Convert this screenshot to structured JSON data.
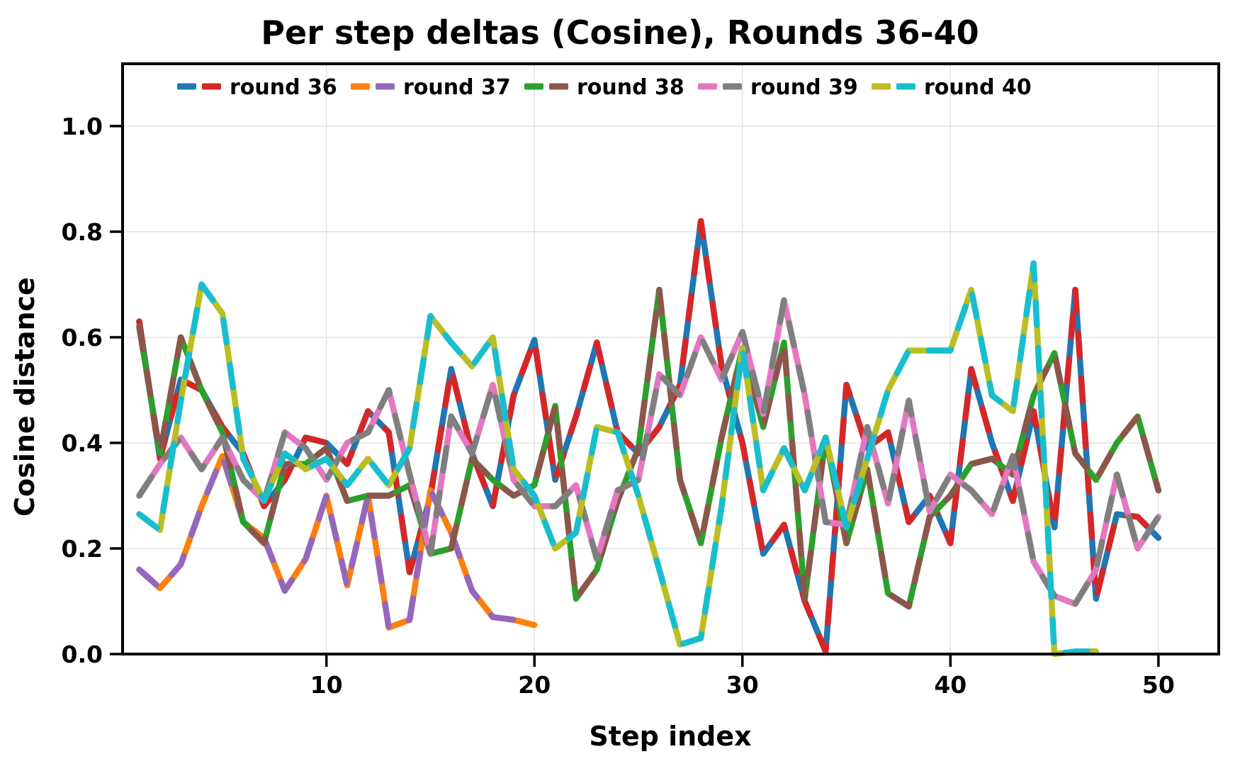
{
  "title": "Per step deltas (Cosine), Rounds 36-40",
  "x_axis_label": "Step index",
  "y_axis_label": "Cosine distance",
  "legend": {
    "items": [
      "round 36",
      "round 37",
      "round 38",
      "round 39",
      "round 40"
    ],
    "position": "upper center inside"
  },
  "chart_data": {
    "type": "line",
    "title": "Per step deltas (Cosine), Rounds 36-40",
    "xlabel": "Step index",
    "ylabel": "Cosine distance",
    "xlim": [
      0.2,
      52.9
    ],
    "ylim": [
      0,
      1.118
    ],
    "x_ticks": [
      10,
      20,
      30,
      40,
      50
    ],
    "y_ticks": [
      0.0,
      0.2,
      0.4,
      0.6,
      0.8,
      1.0
    ],
    "y_tick_labels": [
      "0.0",
      "0.2",
      "0.4",
      "0.6",
      "0.8",
      "1.0"
    ],
    "grid": true,
    "line_style": "each round drawn as one line with two alternating dash colors",
    "series": [
      {
        "name": "round 36",
        "colors": [
          "#1f77b4",
          "#d62728"
        ],
        "x_start": 1,
        "values": [
          0.63,
          0.37,
          0.52,
          0.5,
          0.43,
          0.38,
          0.28,
          0.33,
          0.41,
          0.4,
          0.36,
          0.46,
          0.42,
          0.155,
          0.3,
          0.54,
          0.38,
          0.28,
          0.49,
          0.595,
          0.33,
          0.45,
          0.59,
          0.42,
          0.38,
          0.43,
          0.51,
          0.82,
          0.545,
          0.4,
          0.19,
          0.245,
          0.1,
          0.005,
          0.51,
          0.39,
          0.42,
          0.25,
          0.3,
          0.21,
          0.54,
          0.4,
          0.29,
          0.46,
          0.24,
          0.69,
          0.105,
          0.265,
          0.26,
          0.22
        ]
      },
      {
        "name": "round 37",
        "colors": [
          "#ff7f0e",
          "#9467bd"
        ],
        "x_start": 1,
        "values": [
          0.16,
          0.125,
          0.17,
          0.28,
          0.375,
          0.25,
          0.22,
          0.12,
          0.18,
          0.3,
          0.13,
          0.3,
          0.05,
          0.065,
          0.31,
          0.23,
          0.12,
          0.07,
          0.065,
          0.055
        ]
      },
      {
        "name": "round 38",
        "colors": [
          "#2ca02c",
          "#8c564b"
        ],
        "x_start": 1,
        "values": [
          0.62,
          0.38,
          0.6,
          0.5,
          0.42,
          0.25,
          0.21,
          0.36,
          0.36,
          0.39,
          0.29,
          0.3,
          0.3,
          0.32,
          0.19,
          0.2,
          0.37,
          0.33,
          0.3,
          0.32,
          0.47,
          0.105,
          0.16,
          0.29,
          0.39,
          0.69,
          0.33,
          0.21,
          0.41,
          0.58,
          0.43,
          0.59,
          0.105,
          0.41,
          0.21,
          0.35,
          0.115,
          0.09,
          0.26,
          0.3,
          0.36,
          0.37,
          0.34,
          0.49,
          0.57,
          0.38,
          0.33,
          0.4,
          0.45,
          0.31
        ]
      },
      {
        "name": "round 39",
        "colors": [
          "#e377c2",
          "#7f7f7f"
        ],
        "x_start": 1,
        "values": [
          0.3,
          0.36,
          0.41,
          0.35,
          0.41,
          0.33,
          0.29,
          0.42,
          0.39,
          0.33,
          0.4,
          0.42,
          0.5,
          0.34,
          0.19,
          0.45,
          0.38,
          0.51,
          0.33,
          0.28,
          0.28,
          0.32,
          0.18,
          0.31,
          0.33,
          0.53,
          0.49,
          0.6,
          0.52,
          0.61,
          0.455,
          0.67,
          0.49,
          0.25,
          0.245,
          0.43,
          0.285,
          0.48,
          0.27,
          0.34,
          0.31,
          0.265,
          0.375,
          0.175,
          0.11,
          0.095,
          0.16,
          0.34,
          0.2,
          0.26
        ]
      },
      {
        "name": "round 40",
        "colors": [
          "#bcbd22",
          "#17becf"
        ],
        "x_start": 1,
        "values": [
          0.265,
          0.235,
          0.48,
          0.7,
          0.645,
          0.37,
          0.29,
          0.38,
          0.35,
          0.37,
          0.32,
          0.37,
          0.32,
          0.39,
          0.64,
          0.59,
          0.545,
          0.6,
          0.35,
          0.3,
          0.2,
          0.23,
          0.43,
          0.42,
          0.3,
          0.16,
          0.018,
          0.03,
          0.28,
          0.58,
          0.31,
          0.39,
          0.31,
          0.41,
          0.24,
          0.37,
          0.5,
          0.575,
          0.575,
          0.575,
          0.69,
          0.49,
          0.46,
          0.74,
          0.0,
          0.005,
          0.005
        ]
      }
    ]
  },
  "style": {
    "background": "#ffffff",
    "grid_color": "#e5e5e5",
    "spine_color": "#000000",
    "line_width": 8.5,
    "dash_length": 32
  }
}
